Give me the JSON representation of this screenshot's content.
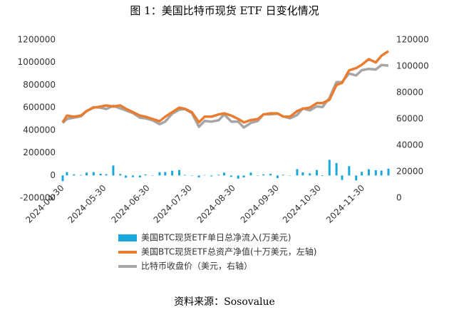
{
  "chart_data": {
    "type": "combo",
    "title": "图 1：美国比特币现货 ETF 日变化情况",
    "source": "资料来源：Sosovalue",
    "x": [
      "2024-04-30",
      "2024-05-03",
      "2024-05-08",
      "2024-05-13",
      "2024-05-17",
      "2024-05-22",
      "2024-05-27",
      "2024-05-31",
      "2024-06-05",
      "2024-06-10",
      "2024-06-14",
      "2024-06-19",
      "2024-06-24",
      "2024-06-28",
      "2024-07-03",
      "2024-07-08",
      "2024-07-12",
      "2024-07-17",
      "2024-07-22",
      "2024-07-26",
      "2024-07-31",
      "2024-08-05",
      "2024-08-09",
      "2024-08-14",
      "2024-08-19",
      "2024-08-23",
      "2024-08-28",
      "2024-09-02",
      "2024-09-06",
      "2024-09-11",
      "2024-09-16",
      "2024-09-20",
      "2024-09-25",
      "2024-09-30",
      "2024-10-04",
      "2024-10-09",
      "2024-10-14",
      "2024-10-18",
      "2024-10-23",
      "2024-10-28",
      "2024-11-01",
      "2024-11-06",
      "2024-11-11",
      "2024-11-15",
      "2024-11-20",
      "2024-11-25",
      "2024-11-29",
      "2024-12-04",
      "2024-12-09",
      "2024-12-13",
      "2024-12-18"
    ],
    "xlim": [
      "2024-04-30",
      "2024-12-18"
    ],
    "xticks": [
      "2024-04-30",
      "2024-05-30",
      "2024-06-30",
      "2024-07-30",
      "2024-08-30",
      "2024-09-30",
      "2024-10-30",
      "2024-11-30"
    ],
    "ylim": [
      -200000,
      1200000
    ],
    "yticks": [
      -200000,
      0,
      200000,
      400000,
      600000,
      800000,
      1000000,
      1200000
    ],
    "y2lim": [
      0,
      120000
    ],
    "y2ticks": [
      0,
      20000,
      40000,
      60000,
      80000,
      100000,
      120000
    ],
    "series": [
      {
        "name": "美国BTC现货ETF单日总净流入(万美元)",
        "type": "bar",
        "color": "#1aa7dc",
        "values": [
          -50000,
          30000,
          10000,
          5000,
          25000,
          30000,
          15000,
          12000,
          88000,
          13000,
          -20000,
          -15000,
          -17000,
          8000,
          -3000,
          29000,
          31000,
          42000,
          48000,
          5000,
          -2000,
          -17000,
          3000,
          -8000,
          6000,
          25000,
          -13000,
          -29000,
          -17000,
          26000,
          1000,
          10000,
          14000,
          -24000,
          6000,
          1000,
          56000,
          27000,
          19000,
          48000,
          -5000,
          138000,
          110000,
          -40000,
          82000,
          -44000,
          32000,
          55000,
          47000,
          43000,
          60000
        ]
      },
      {
        "name": "美国BTC现货ETF总资产净值(十万美元，左轴)",
        "type": "line",
        "color": "#e97c30",
        "values": [
          470000,
          530000,
          520000,
          530000,
          570000,
          600000,
          610000,
          620000,
          610000,
          620000,
          590000,
          560000,
          530000,
          520000,
          500000,
          480000,
          520000,
          560000,
          600000,
          590000,
          560000,
          470000,
          520000,
          520000,
          540000,
          550000,
          530000,
          500000,
          470000,
          490000,
          500000,
          540000,
          550000,
          550000,
          520000,
          520000,
          570000,
          590000,
          600000,
          640000,
          640000,
          670000,
          800000,
          820000,
          930000,
          950000,
          980000,
          1030000,
          1000000,
          1060000,
          1100000
        ]
      },
      {
        "name": "比特币收盘价（美元，右轴）",
        "type": "line",
        "color": "#a6a6a6",
        "axis": "y2",
        "values": [
          57000,
          60000,
          61000,
          62000,
          66000,
          69000,
          68500,
          67500,
          70000,
          68000,
          66500,
          64500,
          61000,
          60500,
          59000,
          56000,
          58000,
          64000,
          67000,
          67500,
          64500,
          54000,
          58500,
          58000,
          59000,
          63500,
          58000,
          58000,
          53500,
          57000,
          58500,
          63500,
          63500,
          64000,
          62000,
          60500,
          63000,
          68000,
          66500,
          69500,
          69000,
          76000,
          88000,
          88000,
          94500,
          93000,
          97000,
          98000,
          97500,
          101000,
          100500
        ]
      }
    ]
  }
}
